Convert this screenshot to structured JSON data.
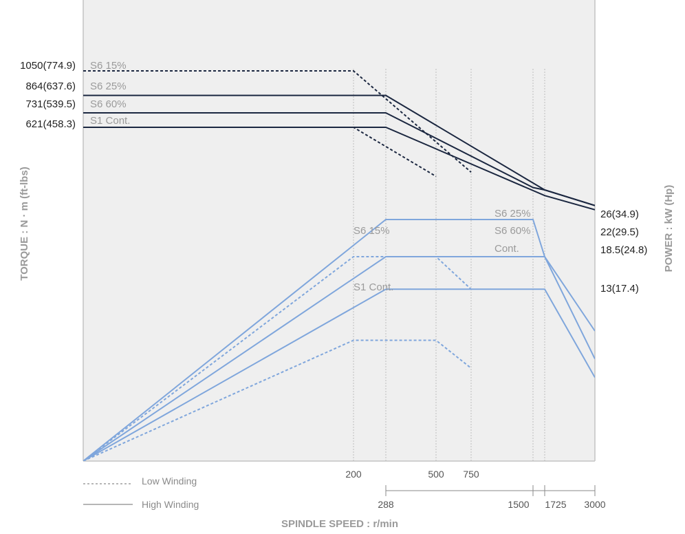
{
  "chart_data": {
    "type": "line",
    "title": "",
    "xlabel": "SPINDLE SPEED : r/min",
    "ylabel_left": "TORQUE : N · m (ft-lbs)",
    "ylabel_right": "POWER : kW (Hp)",
    "colors": {
      "torque": "#1b2740",
      "power": "#7fa6dc",
      "plot_bg": "#efefef",
      "grid": "#bdbdbd"
    },
    "x_ticks_low": [
      "200",
      "500",
      "750"
    ],
    "x_ticks_high": [
      "288",
      "1500",
      "1725",
      "3000"
    ],
    "torque_ticks": [
      "1050(774.9)",
      "864(637.6)",
      "731(539.5)",
      "621(458.3)"
    ],
    "power_ticks": [
      "26(34.9)",
      "22(29.5)",
      "18.5(24.8)",
      "13(17.4)"
    ],
    "torque_series_labels": [
      "S6 15%",
      "S6 25%",
      "S6 60%",
      "S1 Cont."
    ],
    "power_series_labels": [
      "S6 25%",
      "S6 60%",
      "Cont.",
      "S6 15%",
      "S1 Cont."
    ],
    "legend": {
      "low": "Low Winding",
      "high": "High Winding"
    },
    "series": [
      {
        "name": "S6 15%",
        "quantity": "torque",
        "winding": "low",
        "x": [
          0,
          200,
          750
        ],
        "y": [
          1050,
          1050,
          280
        ]
      },
      {
        "name": "S1 Cont.",
        "quantity": "torque",
        "winding": "low",
        "x": [
          0,
          200,
          500
        ],
        "y": [
          621,
          621,
          248
        ]
      },
      {
        "name": "S6 25%",
        "quantity": "torque",
        "winding": "high",
        "x": [
          0,
          288,
          1725,
          3000
        ],
        "y": [
          864,
          864,
          145,
          26
        ]
      },
      {
        "name": "S6 60%",
        "quantity": "torque",
        "winding": "high",
        "x": [
          0,
          288,
          1500,
          1725,
          3000
        ],
        "y": [
          731,
          731,
          163,
          145,
          26
        ]
      },
      {
        "name": "S1 Cont.",
        "quantity": "torque",
        "winding": "high",
        "x": [
          0,
          288,
          1725,
          3000
        ],
        "y": [
          621,
          621,
          102,
          -6
        ]
      },
      {
        "name": "S6 15%",
        "quantity": "power",
        "winding": "low",
        "x": [
          0,
          200,
          500,
          750
        ],
        "y": [
          0,
          22,
          22,
          18.5
        ]
      },
      {
        "name": "S1 Cont.",
        "quantity": "power",
        "winding": "low",
        "x": [
          0,
          200,
          500,
          750
        ],
        "y": [
          0,
          13,
          13,
          10
        ]
      },
      {
        "name": "S6 25%",
        "quantity": "power",
        "winding": "high",
        "x": [
          0,
          288,
          1500,
          1725,
          3000
        ],
        "y": [
          0,
          26,
          26,
          22,
          14
        ]
      },
      {
        "name": "S6 60%",
        "quantity": "power",
        "winding": "high",
        "x": [
          0,
          288,
          1725,
          3000
        ],
        "y": [
          0,
          22,
          22,
          11
        ]
      },
      {
        "name": "Cont.",
        "quantity": "power",
        "winding": "high",
        "x": [
          0,
          288,
          1725,
          3000
        ],
        "y": [
          0,
          18.5,
          18.5,
          9
        ]
      }
    ]
  }
}
